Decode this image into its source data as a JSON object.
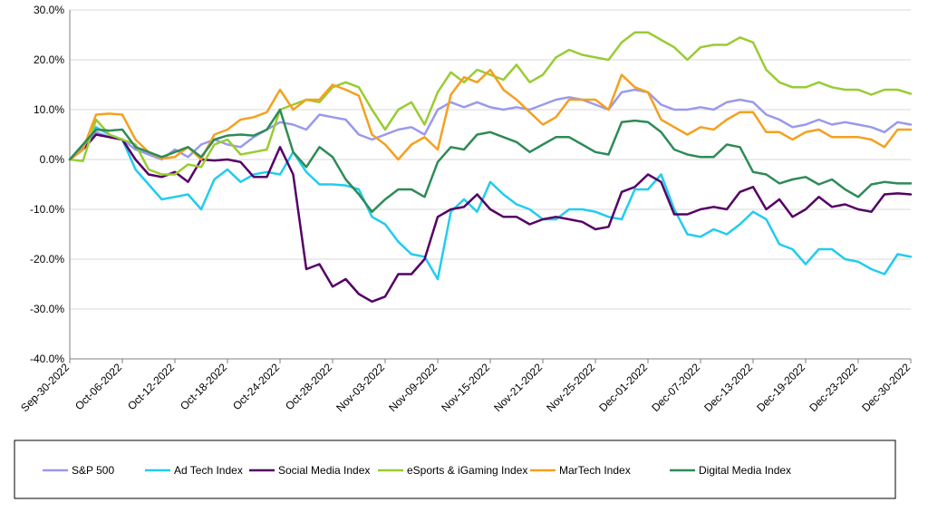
{
  "chart_data": {
    "type": "line",
    "title": "",
    "xlabel": "",
    "ylabel": "",
    "ylim": [
      -0.4,
      0.3
    ],
    "y_ticks": [
      0.3,
      0.2,
      0.1,
      0.0,
      -0.1,
      -0.2,
      -0.3,
      -0.4
    ],
    "y_tick_labels": [
      "30.0%",
      "20.0%",
      "10.0%",
      "0.0%",
      "-10.0%",
      "-20.0%",
      "-30.0%",
      "-40.0%"
    ],
    "x_tick_labels": [
      "Sep-30-2022",
      "Oct-06-2022",
      "Oct-12-2022",
      "Oct-18-2022",
      "Oct-24-2022",
      "Oct-28-2022",
      "Nov-03-2022",
      "Nov-09-2022",
      "Nov-15-2022",
      "Nov-21-2022",
      "Nov-25-2022",
      "Dec-01-2022",
      "Dec-07-2022",
      "Dec-13-2022",
      "Dec-19-2022",
      "Dec-23-2022",
      "Dec-30-2022"
    ],
    "x_tick_positions": [
      0,
      4,
      8,
      12,
      16,
      20,
      24,
      28,
      32,
      36,
      40,
      44,
      48,
      52,
      56,
      60,
      64
    ],
    "grid": "horizontal",
    "legend_position": "bottom",
    "series": [
      {
        "name": "S&P 500",
        "color": "#9999ee",
        "values": [
          0.0,
          0.025,
          0.055,
          0.045,
          0.04,
          0.02,
          0.01,
          0.0,
          0.02,
          0.005,
          0.03,
          0.04,
          0.03,
          0.025,
          0.045,
          0.06,
          0.075,
          0.07,
          0.06,
          0.09,
          0.085,
          0.08,
          0.05,
          0.04,
          0.05,
          0.06,
          0.065,
          0.05,
          0.1,
          0.115,
          0.105,
          0.115,
          0.105,
          0.1,
          0.105,
          0.1,
          0.11,
          0.12,
          0.125,
          0.12,
          0.11,
          0.1,
          0.135,
          0.14,
          0.135,
          0.11,
          0.1,
          0.1,
          0.105,
          0.1,
          0.115,
          0.12,
          0.115,
          0.09,
          0.08,
          0.065,
          0.07,
          0.08,
          0.07,
          0.075,
          0.07,
          0.065,
          0.055,
          0.075,
          0.07
        ]
      },
      {
        "name": "Ad Tech Index",
        "color": "#22ccee",
        "values": [
          0.0,
          0.02,
          0.065,
          0.05,
          0.04,
          -0.02,
          -0.05,
          -0.08,
          -0.075,
          -0.07,
          -0.1,
          -0.04,
          -0.02,
          -0.045,
          -0.03,
          -0.025,
          -0.03,
          0.015,
          -0.025,
          -0.05,
          -0.05,
          -0.052,
          -0.06,
          -0.115,
          -0.13,
          -0.165,
          -0.19,
          -0.195,
          -0.24,
          -0.105,
          -0.08,
          -0.105,
          -0.045,
          -0.07,
          -0.09,
          -0.1,
          -0.12,
          -0.12,
          -0.1,
          -0.1,
          -0.105,
          -0.115,
          -0.12,
          -0.06,
          -0.06,
          -0.03,
          -0.1,
          -0.15,
          -0.155,
          -0.14,
          -0.15,
          -0.13,
          -0.105,
          -0.12,
          -0.17,
          -0.18,
          -0.21,
          -0.18,
          -0.18,
          -0.2,
          -0.205,
          -0.22,
          -0.23,
          -0.19,
          -0.195
        ]
      },
      {
        "name": "Social Media Index",
        "color": "#550066",
        "values": [
          0.0,
          0.02,
          0.05,
          0.045,
          0.04,
          0.0,
          -0.03,
          -0.035,
          -0.025,
          -0.045,
          0.0,
          -0.002,
          0.0,
          -0.005,
          -0.035,
          -0.035,
          0.025,
          -0.03,
          -0.22,
          -0.21,
          -0.255,
          -0.24,
          -0.27,
          -0.285,
          -0.275,
          -0.23,
          -0.23,
          -0.2,
          -0.115,
          -0.1,
          -0.095,
          -0.07,
          -0.1,
          -0.115,
          -0.115,
          -0.13,
          -0.12,
          -0.115,
          -0.12,
          -0.125,
          -0.14,
          -0.135,
          -0.065,
          -0.055,
          -0.03,
          -0.045,
          -0.11,
          -0.11,
          -0.1,
          -0.095,
          -0.1,
          -0.065,
          -0.055,
          -0.1,
          -0.08,
          -0.115,
          -0.1,
          -0.075,
          -0.095,
          -0.09,
          -0.1,
          -0.105,
          -0.07,
          -0.068,
          -0.07
        ]
      },
      {
        "name": "eSports & iGaming Index",
        "color": "#99cc33",
        "values": [
          0.0,
          -0.003,
          0.08,
          0.05,
          0.04,
          0.03,
          -0.02,
          -0.03,
          -0.03,
          -0.01,
          -0.015,
          0.03,
          0.04,
          0.01,
          0.015,
          0.02,
          0.1,
          0.11,
          0.12,
          0.115,
          0.145,
          0.155,
          0.145,
          0.1,
          0.06,
          0.1,
          0.115,
          0.07,
          0.135,
          0.175,
          0.155,
          0.18,
          0.17,
          0.16,
          0.19,
          0.155,
          0.17,
          0.205,
          0.22,
          0.21,
          0.205,
          0.2,
          0.235,
          0.255,
          0.255,
          0.24,
          0.225,
          0.2,
          0.225,
          0.23,
          0.23,
          0.245,
          0.235,
          0.18,
          0.155,
          0.145,
          0.145,
          0.155,
          0.145,
          0.14,
          0.14,
          0.13,
          0.14,
          0.14,
          0.132
        ]
      },
      {
        "name": "MarTech Index",
        "color": "#f5a020",
        "values": [
          0.0,
          0.02,
          0.09,
          0.092,
          0.09,
          0.04,
          0.015,
          0.002,
          0.005,
          0.025,
          0.0,
          0.05,
          0.06,
          0.08,
          0.085,
          0.095,
          0.14,
          0.1,
          0.12,
          0.12,
          0.15,
          0.14,
          0.128,
          0.05,
          0.03,
          0.0,
          0.03,
          0.045,
          0.02,
          0.13,
          0.165,
          0.155,
          0.18,
          0.14,
          0.12,
          0.095,
          0.07,
          0.085,
          0.12,
          0.12,
          0.12,
          0.1,
          0.17,
          0.145,
          0.135,
          0.08,
          0.065,
          0.05,
          0.065,
          0.06,
          0.08,
          0.095,
          0.095,
          0.055,
          0.055,
          0.04,
          0.055,
          0.06,
          0.045,
          0.045,
          0.045,
          0.04,
          0.025,
          0.06,
          0.06
        ]
      },
      {
        "name": "Digital Media Index",
        "color": "#2e8b57",
        "values": [
          0.0,
          0.03,
          0.06,
          0.058,
          0.06,
          0.025,
          0.015,
          0.005,
          0.015,
          0.025,
          0.005,
          0.04,
          0.048,
          0.05,
          0.048,
          0.06,
          0.1,
          0.015,
          -0.015,
          0.025,
          0.005,
          -0.04,
          -0.07,
          -0.105,
          -0.08,
          -0.06,
          -0.06,
          -0.075,
          -0.005,
          0.025,
          0.02,
          0.05,
          0.055,
          0.045,
          0.035,
          0.015,
          0.03,
          0.045,
          0.045,
          0.03,
          0.015,
          0.01,
          0.075,
          0.078,
          0.075,
          0.055,
          0.02,
          0.01,
          0.005,
          0.005,
          0.03,
          0.025,
          -0.025,
          -0.03,
          -0.048,
          -0.04,
          -0.035,
          -0.05,
          -0.04,
          -0.06,
          -0.075,
          -0.05,
          -0.045,
          -0.048,
          -0.048
        ]
      }
    ]
  }
}
